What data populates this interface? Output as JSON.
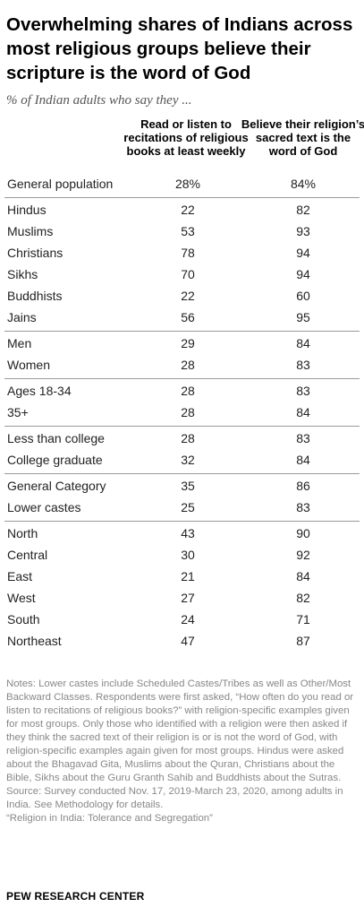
{
  "header": {
    "title": "Overwhelming shares of Indians across most religious groups believe their scripture is the word of God",
    "subtitle": "% of Indian adults who say they ...",
    "col1": "Read or listen to recitations of religious books at least weekly",
    "col2": "Believe their religion’s sacred text is the word of God"
  },
  "chart_data": {
    "type": "table",
    "columns": [
      "Read or listen to recitations of religious books at least weekly",
      "Believe their religion’s sacred text is the word of God"
    ],
    "groups": [
      [
        {
          "label": "General population",
          "v1": "28%",
          "v2": "84%"
        }
      ],
      [
        {
          "label": "Hindus",
          "v1": "22",
          "v2": "82"
        },
        {
          "label": "Muslims",
          "v1": "53",
          "v2": "93"
        },
        {
          "label": "Christians",
          "v1": "78",
          "v2": "94"
        },
        {
          "label": "Sikhs",
          "v1": "70",
          "v2": "94"
        },
        {
          "label": "Buddhists",
          "v1": "22",
          "v2": "60"
        },
        {
          "label": "Jains",
          "v1": "56",
          "v2": "95"
        }
      ],
      [
        {
          "label": "Men",
          "v1": "29",
          "v2": "84"
        },
        {
          "label": "Women",
          "v1": "28",
          "v2": "83"
        }
      ],
      [
        {
          "label": "Ages 18-34",
          "v1": "28",
          "v2": "83"
        },
        {
          "label": "35+",
          "v1": "28",
          "v2": "84"
        }
      ],
      [
        {
          "label": "Less than college",
          "v1": "28",
          "v2": "83"
        },
        {
          "label": "College graduate",
          "v1": "32",
          "v2": "84"
        }
      ],
      [
        {
          "label": "General Category",
          "v1": "35",
          "v2": "86"
        },
        {
          "label": "Lower castes",
          "v1": "25",
          "v2": "83"
        }
      ],
      [
        {
          "label": "North",
          "v1": "43",
          "v2": "90"
        },
        {
          "label": "Central",
          "v1": "30",
          "v2": "92"
        },
        {
          "label": "East",
          "v1": "21",
          "v2": "84"
        },
        {
          "label": "West",
          "v1": "27",
          "v2": "82"
        },
        {
          "label": "South",
          "v1": "24",
          "v2": "71"
        },
        {
          "label": "Northeast",
          "v1": "47",
          "v2": "87"
        }
      ]
    ]
  },
  "footer": {
    "notes": "Notes: Lower castes include Scheduled Castes/Tribes as well as Other/Most Backward Classes. Respondents were first asked, “How often do you read or listen to recitations of religious books?” with religion-specific examples given for most groups. Only those who identified with a religion were then asked if they think the sacred text of their religion is or is not the word of God, with religion-specific examples again given for most groups. Hindus were asked about the Bhagavad Gita, Muslims about the Quran, Christians about the Bible, Sikhs about the Guru Granth Sahib and Buddhists about the Sutras.",
    "source": "Source: Survey conducted Nov. 17, 2019-March 23, 2020, among adults in India. See Methodology for details.",
    "report": "“Religion in India: Tolerance and Segregation”",
    "brand": "PEW RESEARCH CENTER"
  },
  "colors": {
    "title": "#000000",
    "text": "#222222",
    "subtitle": "#555555",
    "notes": "#888888",
    "rule": "#9a9a9a"
  }
}
